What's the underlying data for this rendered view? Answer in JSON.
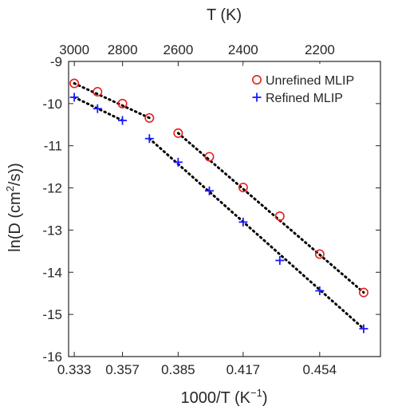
{
  "chart_data": {
    "type": "scatter",
    "title": "",
    "xlabel": {
      "base": "1000/T (K",
      "sup": "−1",
      "tail": ")"
    },
    "ylabel": {
      "base": "ln(D (cm",
      "sup": "2",
      "tail": "/s))"
    },
    "x2label": "T (K)",
    "xlim": [
      0.3305,
      0.4845
    ],
    "ylim": [
      -16,
      -9
    ],
    "x_ticks": [
      {
        "value": 0.3333,
        "label": "0.333"
      },
      {
        "value": 0.3571,
        "label": "0.357"
      },
      {
        "value": 0.3846,
        "label": "0.385"
      },
      {
        "value": 0.4167,
        "label": "0.417"
      },
      {
        "value": 0.4545,
        "label": "0.454"
      }
    ],
    "x2_ticks": [
      {
        "value": 3000,
        "label": "3000"
      },
      {
        "value": 2800,
        "label": "2800"
      },
      {
        "value": 2600,
        "label": "2600"
      },
      {
        "value": 2400,
        "label": "2400"
      },
      {
        "value": 2200,
        "label": "2200"
      }
    ],
    "y_ticks": [
      {
        "value": -9,
        "label": "-9"
      },
      {
        "value": -10,
        "label": "-10"
      },
      {
        "value": -11,
        "label": "-11"
      },
      {
        "value": -12,
        "label": "-12"
      },
      {
        "value": -13,
        "label": "-13"
      },
      {
        "value": -14,
        "label": "-14"
      },
      {
        "value": -15,
        "label": "-15"
      },
      {
        "value": -16,
        "label": "-16"
      }
    ],
    "grid": false,
    "legend_position": "top-right",
    "series": [
      {
        "name": "Unrefined MLIP",
        "marker": "circle",
        "color": "#e8201b",
        "points": [
          {
            "x": 0.3333,
            "y": -9.52
          },
          {
            "x": 0.3448,
            "y": -9.72
          },
          {
            "x": 0.3571,
            "y": -10.0
          },
          {
            "x": 0.3704,
            "y": -10.34
          },
          {
            "x": 0.3846,
            "y": -10.7
          },
          {
            "x": 0.4,
            "y": -11.26
          },
          {
            "x": 0.4167,
            "y": -11.99
          },
          {
            "x": 0.4348,
            "y": -12.67
          },
          {
            "x": 0.4545,
            "y": -13.57
          },
          {
            "x": 0.4762,
            "y": -14.48
          }
        ],
        "fits": [
          {
            "x": [
              0.3333,
              0.3704
            ],
            "y": [
              -9.52,
              -10.34
            ]
          },
          {
            "x": [
              0.3846,
              0.4762
            ],
            "y": [
              -10.7,
              -14.48
            ]
          }
        ]
      },
      {
        "name": "Refined MLIP",
        "marker": "plus",
        "color": "#1a1aff",
        "points": [
          {
            "x": 0.3333,
            "y": -9.85
          },
          {
            "x": 0.3448,
            "y": -10.12
          },
          {
            "x": 0.3571,
            "y": -10.4
          },
          {
            "x": 0.3704,
            "y": -10.83
          },
          {
            "x": 0.3846,
            "y": -11.39
          },
          {
            "x": 0.4,
            "y": -12.07
          },
          {
            "x": 0.4167,
            "y": -12.81
          },
          {
            "x": 0.4348,
            "y": -13.72
          },
          {
            "x": 0.4545,
            "y": -14.44
          },
          {
            "x": 0.4762,
            "y": -15.34
          }
        ],
        "fits": [
          {
            "x": [
              0.3333,
              0.3571
            ],
            "y": [
              -9.85,
              -10.4
            ]
          },
          {
            "x": [
              0.3704,
              0.4762
            ],
            "y": [
              -10.83,
              -15.34
            ]
          }
        ]
      }
    ],
    "fit_line_color": "#000000"
  }
}
